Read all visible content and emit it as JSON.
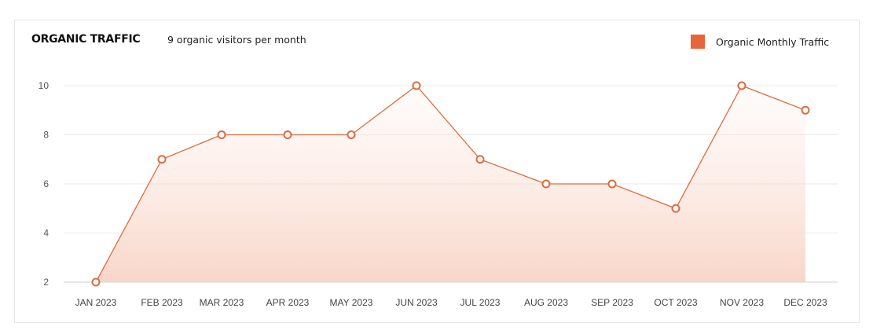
{
  "card": {
    "title": "ORGANIC TRAFFIC",
    "subtitle": "9 organic visitors per month"
  },
  "legend": {
    "label": "Organic Monthly Traffic",
    "color": "#e8643a"
  },
  "colors": {
    "line": "#e06a3c",
    "marker_stroke": "#e06a3c",
    "fill_top": "#fde9e2",
    "fill_bottom": "#f8d4c6",
    "grid": "#e8e8e8"
  },
  "chart_data": {
    "type": "area",
    "title": "ORGANIC TRAFFIC",
    "subtitle": "9 organic visitors per month",
    "categories": [
      "JAN 2023",
      "FEB 2023",
      "MAR 2023",
      "APR 2023",
      "MAY 2023",
      "JUN 2023",
      "JUL 2023",
      "AUG 2023",
      "SEP 2023",
      "OCT 2023",
      "NOV 2023",
      "DEC 2023"
    ],
    "series": [
      {
        "name": "Organic Monthly Traffic",
        "values": [
          2,
          7,
          8,
          8,
          8,
          10,
          7,
          6,
          6,
          5,
          10,
          9
        ]
      }
    ],
    "xlabel": "",
    "ylabel": "",
    "ylim": [
      2,
      10
    ],
    "yticks": [
      2,
      4,
      6,
      8,
      10
    ],
    "grid": true,
    "legend_position": "top-right"
  }
}
